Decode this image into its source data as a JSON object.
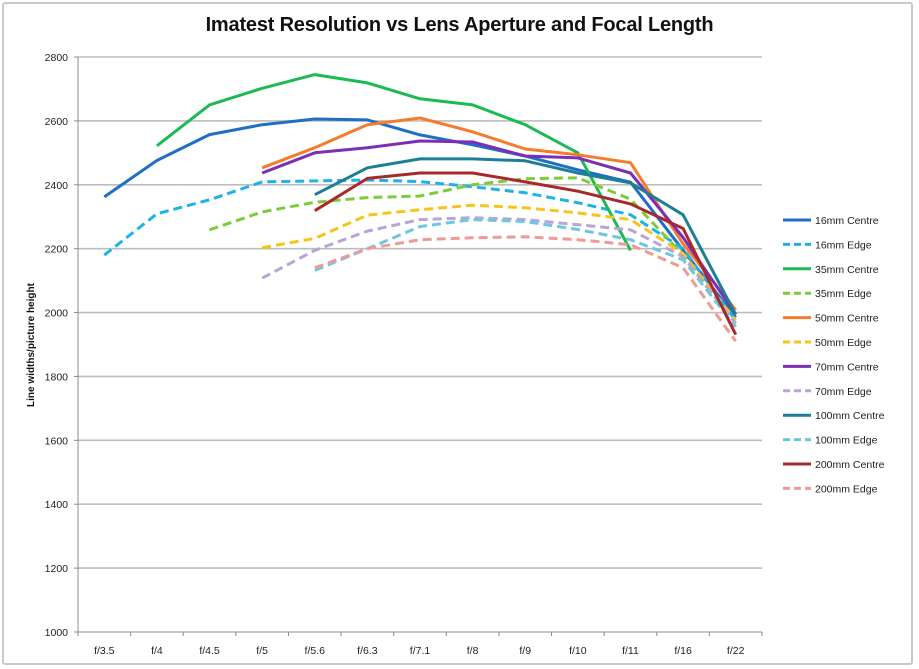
{
  "chart_data": {
    "type": "line",
    "title": "Imatest Resolution vs Lens Aperture and Focal Length",
    "xlabel": "",
    "ylabel": "Line widths/picture height",
    "ylim": [
      1000,
      2800
    ],
    "yticks": [
      1000,
      1200,
      1400,
      1600,
      1800,
      2000,
      2200,
      2400,
      2600,
      2800
    ],
    "grid": true,
    "legend_position": "right",
    "categories": [
      "f/3.5",
      "f/4",
      "f/4.5",
      "f/5",
      "f/5.6",
      "f/6.3",
      "f/7.1",
      "f/8",
      "f/9",
      "f/10",
      "f/11",
      "f/16",
      "f/22"
    ],
    "series": [
      {
        "name": "16mm Centre",
        "color": "#1f6fc5",
        "dash": "solid",
        "values": [
          2362,
          2476,
          2557,
          2588,
          2606,
          2603,
          2556,
          2525,
          2490,
          2447,
          2408,
          2195,
          1985
        ]
      },
      {
        "name": "16mm Edge",
        "color": "#1fb2e8",
        "dash": "dashed",
        "values": [
          2180,
          2309,
          2353,
          2409,
          2412,
          2415,
          2410,
          2394,
          2375,
          2344,
          2306,
          2200,
          1975
        ]
      },
      {
        "name": "35mm Centre",
        "color": "#1db954",
        "dash": "solid",
        "values": [
          null,
          2522,
          2650,
          2702,
          2745,
          2719,
          2669,
          2650,
          2588,
          2500,
          2195,
          null,
          null
        ]
      },
      {
        "name": "35mm Edge",
        "color": "#7ccc3a",
        "dash": "dashed",
        "values": [
          null,
          null,
          2259,
          2315,
          2345,
          2360,
          2365,
          2400,
          2419,
          2422,
          2355,
          2180,
          1965
        ]
      },
      {
        "name": "50mm Centre",
        "color": "#f47c2c",
        "dash": "solid",
        "values": [
          null,
          null,
          null,
          2453,
          2516,
          2588,
          2609,
          2566,
          2512,
          2494,
          2469,
          2215,
          2008
        ]
      },
      {
        "name": "50mm Edge",
        "color": "#f8c41c",
        "dash": "dashed",
        "values": [
          null,
          null,
          null,
          2203,
          2232,
          2305,
          2322,
          2336,
          2328,
          2312,
          2291,
          2185,
          1975
        ]
      },
      {
        "name": "70mm Centre",
        "color": "#7b2fb5",
        "dash": "solid",
        "values": [
          null,
          null,
          null,
          2437,
          2500,
          2516,
          2537,
          2534,
          2490,
          2484,
          2437,
          2235,
          1995
        ]
      },
      {
        "name": "70mm Edge",
        "color": "#b9a4d6",
        "dash": "dashed",
        "values": [
          null,
          null,
          null,
          2108,
          2195,
          2255,
          2291,
          2297,
          2291,
          2275,
          2259,
          2175,
          1965
        ]
      },
      {
        "name": "100mm Centre",
        "color": "#1d7f96",
        "dash": "solid",
        "values": [
          null,
          null,
          null,
          null,
          2369,
          2453,
          2481,
          2481,
          2475,
          2437,
          2406,
          2306,
          1994
        ]
      },
      {
        "name": "100mm Edge",
        "color": "#6cc8e0",
        "dash": "dashed",
        "values": [
          null,
          null,
          null,
          null,
          2132,
          2200,
          2269,
          2291,
          2285,
          2260,
          2228,
          2165,
          1955
        ]
      },
      {
        "name": "200mm Centre",
        "color": "#a8292c",
        "dash": "solid",
        "values": [
          null,
          null,
          null,
          null,
          2319,
          2420,
          2437,
          2437,
          2409,
          2380,
          2340,
          2263,
          1931
        ]
      },
      {
        "name": "200mm Edge",
        "color": "#ef9a96",
        "dash": "dashed",
        "values": [
          null,
          null,
          null,
          null,
          2140,
          2200,
          2228,
          2234,
          2237,
          2228,
          2212,
          2140,
          1910
        ]
      }
    ]
  }
}
